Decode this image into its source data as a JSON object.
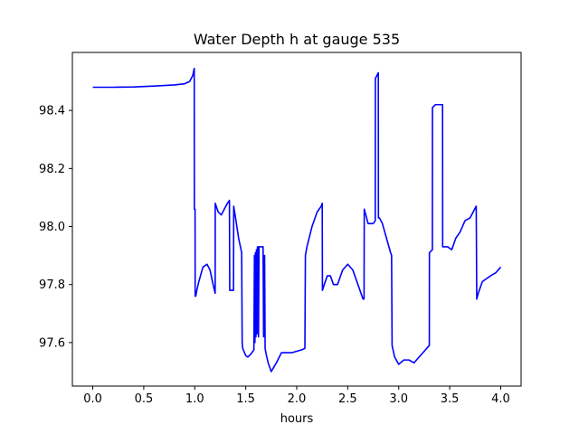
{
  "chart_data": {
    "type": "line",
    "title": "Water Depth h at gauge 535",
    "xlabel": "hours",
    "ylabel": "",
    "xlim": [
      -0.2,
      4.2
    ],
    "ylim": [
      97.45,
      98.6
    ],
    "grid": false,
    "legend": "none",
    "x_ticks": [
      0.0,
      0.5,
      1.0,
      1.5,
      2.0,
      2.5,
      3.0,
      3.5,
      4.0
    ],
    "x_tick_labels": [
      "0.0",
      "0.5",
      "1.0",
      "1.5",
      "2.0",
      "2.5",
      "3.0",
      "3.5",
      "4.0"
    ],
    "y_ticks": [
      97.6,
      97.8,
      98.0,
      98.2,
      98.4
    ],
    "y_tick_labels": [
      "97.6",
      "97.8",
      "98.0",
      "98.2",
      "98.4"
    ],
    "series": [
      {
        "color": "#0000ff",
        "x": [
          0.0,
          0.2,
          0.4,
          0.6,
          0.8,
          0.9,
          0.95,
          0.98,
          0.995,
          0.996,
          1.003,
          1.004,
          1.01,
          1.02,
          1.04,
          1.08,
          1.12,
          1.15,
          1.18,
          1.2,
          1.201,
          1.23,
          1.26,
          1.29,
          1.32,
          1.34,
          1.343,
          1.37,
          1.38,
          1.382,
          1.4,
          1.43,
          1.46,
          1.465,
          1.47,
          1.5,
          1.52,
          1.55,
          1.58,
          1.585,
          1.59,
          1.595,
          1.6,
          1.605,
          1.61,
          1.615,
          1.62,
          1.625,
          1.63,
          1.64,
          1.67,
          1.675,
          1.68,
          1.685,
          1.69,
          1.7,
          1.72,
          1.75,
          1.8,
          1.85,
          1.9,
          1.95,
          2.0,
          2.05,
          2.08,
          2.085,
          2.1,
          2.15,
          2.2,
          2.24,
          2.25,
          2.252,
          2.27,
          2.3,
          2.33,
          2.36,
          2.4,
          2.45,
          2.5,
          2.55,
          2.6,
          2.65,
          2.66,
          2.662,
          2.7,
          2.75,
          2.77,
          2.771,
          2.8,
          2.801,
          2.81,
          2.84,
          2.88,
          2.92,
          2.93,
          2.935,
          2.96,
          3.0,
          3.05,
          3.1,
          3.15,
          3.2,
          3.25,
          3.3,
          3.301,
          3.33,
          3.331,
          3.36,
          3.4,
          3.43,
          3.431,
          3.45,
          3.48,
          3.52,
          3.56,
          3.6,
          3.65,
          3.7,
          3.76,
          3.765,
          3.78,
          3.82,
          3.86,
          3.9,
          3.95,
          4.0
        ],
        "values": [
          98.48,
          98.48,
          98.481,
          98.484,
          98.488,
          98.492,
          98.5,
          98.52,
          98.545,
          98.06,
          98.06,
          97.76,
          97.76,
          97.78,
          97.81,
          97.86,
          97.87,
          97.85,
          97.8,
          97.77,
          98.08,
          98.05,
          98.04,
          98.06,
          98.08,
          98.09,
          97.78,
          97.78,
          97.78,
          98.07,
          98.03,
          97.96,
          97.91,
          97.6,
          97.58,
          97.555,
          97.55,
          97.56,
          97.575,
          97.9,
          97.6,
          97.91,
          97.62,
          97.92,
          97.63,
          97.93,
          97.93,
          97.62,
          97.93,
          97.93,
          97.93,
          97.62,
          97.9,
          97.9,
          97.58,
          97.56,
          97.53,
          97.5,
          97.53,
          97.565,
          97.565,
          97.565,
          97.57,
          97.575,
          97.58,
          97.9,
          97.93,
          98.0,
          98.05,
          98.07,
          98.08,
          97.78,
          97.8,
          97.83,
          97.83,
          97.8,
          97.8,
          97.85,
          97.87,
          97.85,
          97.8,
          97.75,
          97.75,
          98.06,
          98.01,
          98.01,
          98.02,
          98.51,
          98.53,
          98.03,
          98.03,
          98.01,
          97.96,
          97.91,
          97.9,
          97.59,
          97.55,
          97.525,
          97.54,
          97.54,
          97.53,
          97.55,
          97.57,
          97.59,
          97.91,
          97.92,
          98.41,
          98.42,
          98.42,
          98.42,
          97.93,
          97.93,
          97.93,
          97.92,
          97.96,
          97.98,
          98.02,
          98.03,
          98.07,
          97.75,
          97.77,
          97.81,
          97.82,
          97.83,
          97.84,
          97.86
        ]
      }
    ]
  }
}
